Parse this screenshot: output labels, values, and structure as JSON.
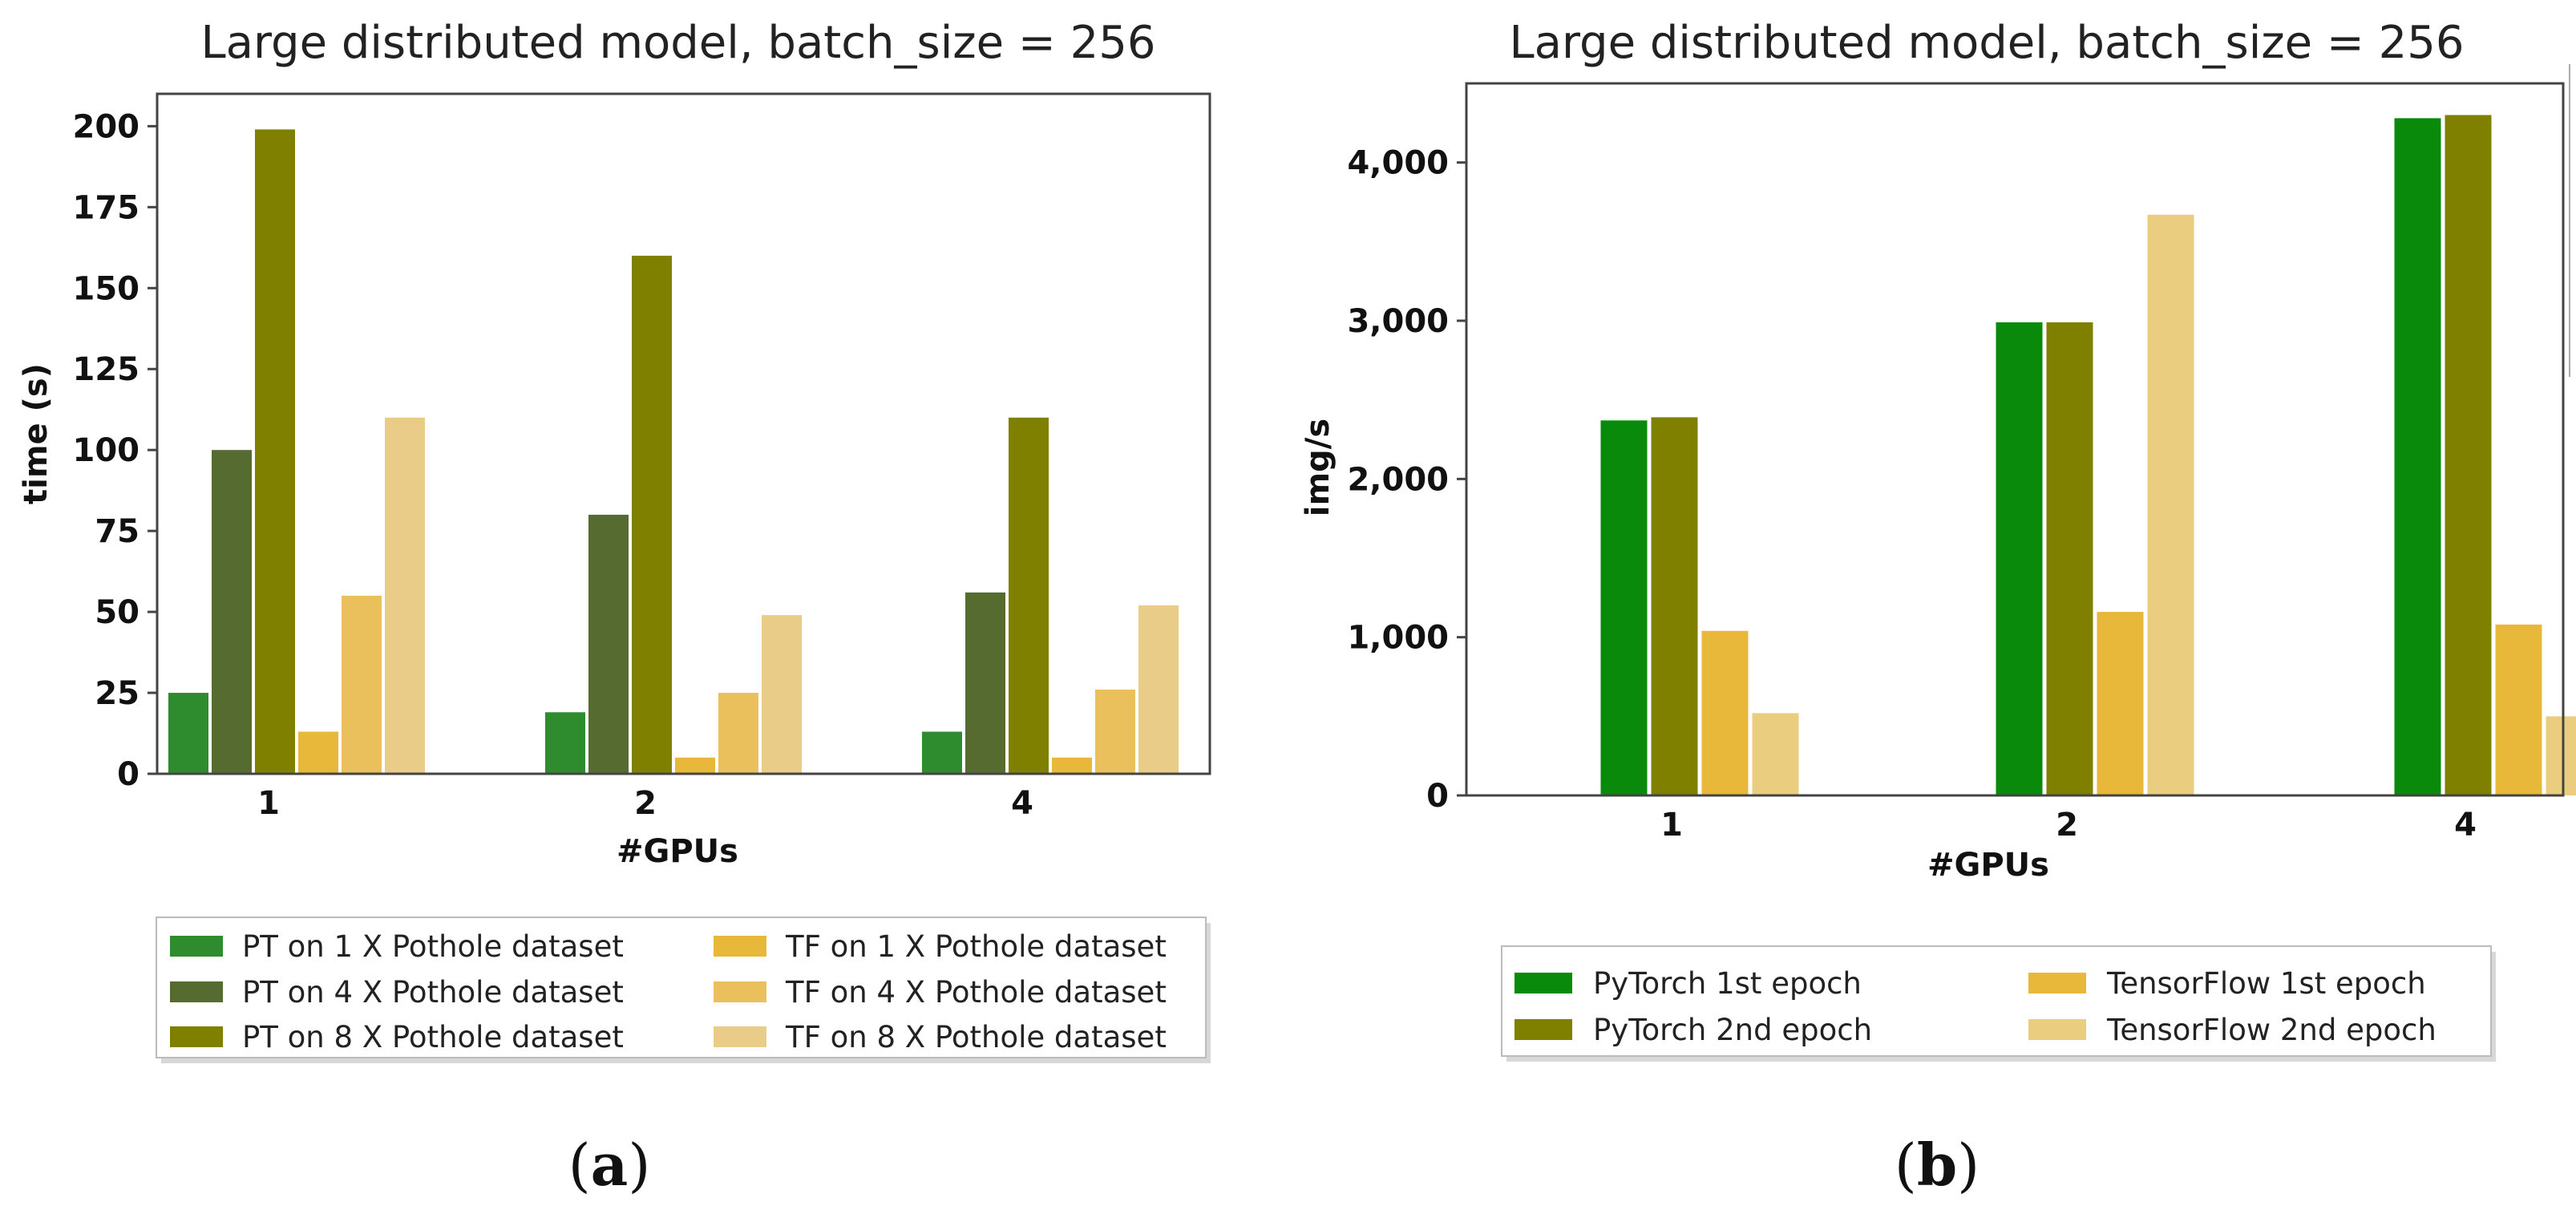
{
  "chart_data": [
    {
      "type": "bar",
      "panel_label": "a",
      "title": "Large distributed model, batch_size = 256",
      "xlabel": "#GPUs",
      "ylabel": "time (s)",
      "categories": [
        "1",
        "2",
        "4"
      ],
      "ylim": [
        0,
        210
      ],
      "yticks": [
        0,
        25,
        50,
        75,
        100,
        125,
        150,
        175,
        200
      ],
      "ytick_labels": [
        "0",
        "25",
        "50",
        "75",
        "100",
        "125",
        "150",
        "175",
        "200"
      ],
      "grid": false,
      "legend_position": "bottom",
      "series": [
        {
          "name": "PT on 1 X Pothole dataset",
          "color": "#2e8b2e",
          "values": [
            25,
            19,
            13
          ]
        },
        {
          "name": "PT on 4 X Pothole dataset",
          "color": "#556b2f",
          "values": [
            100,
            80,
            56
          ]
        },
        {
          "name": "PT on 8 X Pothole dataset",
          "color": "#808000",
          "values": [
            199,
            160,
            110
          ]
        },
        {
          "name": "TF on 1 X Pothole dataset",
          "color": "#e8b83a",
          "values": [
            13,
            5,
            5
          ]
        },
        {
          "name": "TF on 4 X Pothole dataset",
          "color": "#eac05c",
          "values": [
            55,
            25,
            26
          ]
        },
        {
          "name": "TF on 8 X Pothole dataset",
          "color": "#e8cc88",
          "values": [
            110,
            49,
            52
          ]
        }
      ]
    },
    {
      "type": "bar",
      "panel_label": "b",
      "title": "Large distributed model, batch_size = 256",
      "xlabel": "#GPUs",
      "ylabel": "img/s",
      "categories": [
        "1",
        "2",
        "4"
      ],
      "ylim": [
        0,
        4500
      ],
      "yticks": [
        0,
        1000,
        2000,
        3000,
        4000
      ],
      "ytick_labels": [
        "0",
        "1,000",
        "2,000",
        "3,000",
        "4,000"
      ],
      "grid": false,
      "legend_position": "bottom",
      "series": [
        {
          "name": "PyTorch 1st epoch",
          "color": "#0a8a0a",
          "values": [
            2370,
            2990,
            4280
          ]
        },
        {
          "name": "PyTorch 2nd epoch",
          "color": "#808000",
          "values": [
            2390,
            2990,
            4300
          ]
        },
        {
          "name": "TensorFlow 1st epoch",
          "color": "#e8b83a",
          "values": [
            1040,
            1160,
            1080
          ]
        },
        {
          "name": "TensorFlow 2nd epoch",
          "color": "#ebcd80",
          "values": [
            520,
            3670,
            500
          ]
        }
      ]
    }
  ]
}
